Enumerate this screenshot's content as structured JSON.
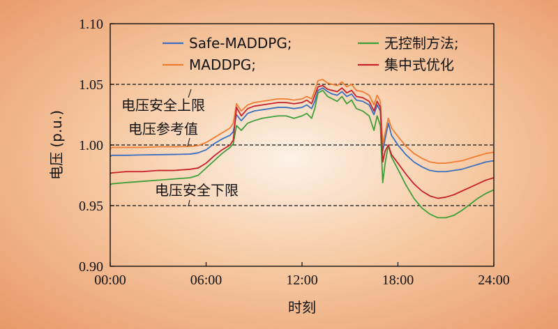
{
  "chart_data": {
    "type": "line",
    "title": "",
    "xlabel": "时刻",
    "ylabel": "电压 (p.u.)",
    "xlim": [
      0,
      24
    ],
    "ylim": [
      0.9,
      1.1
    ],
    "x_ticks": [
      "00:00",
      "06:00",
      "12:00",
      "18:00",
      "24:00"
    ],
    "y_ticks": [
      "0.90",
      "0.95",
      "1.00",
      "1.05",
      "1.10"
    ],
    "grid": false,
    "legend_position": "top",
    "reference_lines": [
      {
        "label": "电压安全上限",
        "y": 1.05
      },
      {
        "label": "电压参考值",
        "y": 1.0
      },
      {
        "label": "电压安全下限",
        "y": 0.95
      }
    ],
    "series": [
      {
        "name": "Safe-MADDPG;",
        "color": "#3a6fc0",
        "points": [
          [
            0,
            0.9905
          ],
          [
            0.1,
            0.9915
          ],
          [
            1,
            0.9915
          ],
          [
            2,
            0.9918
          ],
          [
            3,
            0.992
          ],
          [
            4,
            0.9922
          ],
          [
            5,
            0.9925
          ],
          [
            5.5,
            0.9935
          ],
          [
            6,
            0.996
          ],
          [
            6.5,
            1.001
          ],
          [
            7,
            1.005
          ],
          [
            7.5,
            1.008
          ],
          [
            7.7,
            1.011
          ],
          [
            7.9,
            1.025
          ],
          [
            8.2,
            1.02
          ],
          [
            8.6,
            1.026
          ],
          [
            9,
            1.028
          ],
          [
            9.5,
            1.029
          ],
          [
            10,
            1.03
          ],
          [
            10.5,
            1.031
          ],
          [
            11,
            1.031
          ],
          [
            11.5,
            1.03
          ],
          [
            12,
            1.031
          ],
          [
            12.3,
            1.033
          ],
          [
            12.6,
            1.03
          ],
          [
            12.8,
            1.036
          ],
          [
            13,
            1.045
          ],
          [
            13.3,
            1.047
          ],
          [
            13.6,
            1.044
          ],
          [
            13.9,
            1.042
          ],
          [
            14.2,
            1.041
          ],
          [
            14.5,
            1.044
          ],
          [
            14.8,
            1.04
          ],
          [
            15.1,
            1.042
          ],
          [
            15.4,
            1.037
          ],
          [
            15.8,
            1.036
          ],
          [
            16.2,
            1.033
          ],
          [
            16.5,
            1.025
          ],
          [
            16.7,
            1.033
          ],
          [
            16.9,
            1.028
          ],
          [
            17.05,
            0.995
          ],
          [
            17.2,
            1.005
          ],
          [
            17.4,
            1.018
          ],
          [
            17.6,
            1.008
          ],
          [
            18,
            1.0
          ],
          [
            18.5,
            0.992
          ],
          [
            19,
            0.986
          ],
          [
            19.5,
            0.982
          ],
          [
            20,
            0.979
          ],
          [
            20.5,
            0.978
          ],
          [
            21,
            0.978
          ],
          [
            21.5,
            0.979
          ],
          [
            22,
            0.98
          ],
          [
            22.5,
            0.982
          ],
          [
            23,
            0.984
          ],
          [
            23.5,
            0.986
          ],
          [
            24,
            0.987
          ]
        ]
      },
      {
        "name": "MADDPG;",
        "color": "#f07c32",
        "points": [
          [
            0,
            0.9965
          ],
          [
            0.1,
            0.998
          ],
          [
            1,
            0.998
          ],
          [
            2,
            0.998
          ],
          [
            3,
            0.9985
          ],
          [
            4,
            0.9985
          ],
          [
            5,
            0.9988
          ],
          [
            5.5,
            0.9995
          ],
          [
            6,
            1.002
          ],
          [
            6.5,
            1.006
          ],
          [
            7,
            1.01
          ],
          [
            7.5,
            1.014
          ],
          [
            7.7,
            1.018
          ],
          [
            7.9,
            1.034
          ],
          [
            8.2,
            1.028
          ],
          [
            8.6,
            1.033
          ],
          [
            9,
            1.035
          ],
          [
            9.5,
            1.036
          ],
          [
            10,
            1.037
          ],
          [
            10.5,
            1.038
          ],
          [
            11,
            1.038
          ],
          [
            11.5,
            1.037
          ],
          [
            12,
            1.038
          ],
          [
            12.3,
            1.04
          ],
          [
            12.6,
            1.038
          ],
          [
            12.8,
            1.045
          ],
          [
            13,
            1.053
          ],
          [
            13.3,
            1.054
          ],
          [
            13.6,
            1.051
          ],
          [
            13.9,
            1.05
          ],
          [
            14.2,
            1.049
          ],
          [
            14.5,
            1.052
          ],
          [
            14.8,
            1.048
          ],
          [
            15.1,
            1.05
          ],
          [
            15.4,
            1.045
          ],
          [
            15.8,
            1.044
          ],
          [
            16.2,
            1.041
          ],
          [
            16.5,
            1.033
          ],
          [
            16.7,
            1.041
          ],
          [
            16.9,
            1.036
          ],
          [
            17.05,
            1.0
          ],
          [
            17.2,
            1.01
          ],
          [
            17.4,
            1.022
          ],
          [
            17.6,
            1.014
          ],
          [
            18,
            1.007
          ],
          [
            18.5,
            0.999
          ],
          [
            19,
            0.993
          ],
          [
            19.5,
            0.989
          ],
          [
            20,
            0.986
          ],
          [
            20.5,
            0.985
          ],
          [
            21,
            0.985
          ],
          [
            21.5,
            0.986
          ],
          [
            22,
            0.987
          ],
          [
            22.5,
            0.989
          ],
          [
            23,
            0.991
          ],
          [
            23.5,
            0.993
          ],
          [
            24,
            0.994
          ]
        ]
      },
      {
        "name": "无控制方法;",
        "color": "#3e9e3a",
        "points": [
          [
            0,
            0.967
          ],
          [
            0.1,
            0.968
          ],
          [
            1,
            0.969
          ],
          [
            2,
            0.97
          ],
          [
            3,
            0.971
          ],
          [
            4,
            0.972
          ],
          [
            5,
            0.973
          ],
          [
            5.5,
            0.975
          ],
          [
            6,
            0.981
          ],
          [
            6.5,
            0.987
          ],
          [
            7,
            0.993
          ],
          [
            7.5,
            0.998
          ],
          [
            7.7,
            1.001
          ],
          [
            7.9,
            1.016
          ],
          [
            8.2,
            1.012
          ],
          [
            8.6,
            1.018
          ],
          [
            9,
            1.02
          ],
          [
            9.5,
            1.022
          ],
          [
            10,
            1.023
          ],
          [
            10.5,
            1.024
          ],
          [
            11,
            1.024
          ],
          [
            11.5,
            1.022
          ],
          [
            12,
            1.024
          ],
          [
            12.3,
            1.026
          ],
          [
            12.6,
            1.022
          ],
          [
            12.8,
            1.03
          ],
          [
            13,
            1.043
          ],
          [
            13.3,
            1.045
          ],
          [
            13.6,
            1.04
          ],
          [
            13.9,
            1.038
          ],
          [
            14.2,
            1.036
          ],
          [
            14.5,
            1.04
          ],
          [
            14.8,
            1.034
          ],
          [
            15.1,
            1.037
          ],
          [
            15.4,
            1.03
          ],
          [
            15.8,
            1.028
          ],
          [
            16.2,
            1.024
          ],
          [
            16.5,
            1.012
          ],
          [
            16.7,
            1.024
          ],
          [
            16.9,
            1.016
          ],
          [
            17.05,
            0.969
          ],
          [
            17.2,
            0.985
          ],
          [
            17.4,
            1.0
          ],
          [
            17.6,
            0.99
          ],
          [
            18,
            0.98
          ],
          [
            18.5,
            0.967
          ],
          [
            19,
            0.956
          ],
          [
            19.5,
            0.948
          ],
          [
            20,
            0.943
          ],
          [
            20.5,
            0.94
          ],
          [
            21,
            0.94
          ],
          [
            21.5,
            0.942
          ],
          [
            22,
            0.946
          ],
          [
            22.5,
            0.951
          ],
          [
            23,
            0.956
          ],
          [
            23.5,
            0.96
          ],
          [
            24,
            0.963
          ]
        ]
      },
      {
        "name": "集中式优化",
        "color": "#c8202a",
        "points": [
          [
            0,
            0.9765
          ],
          [
            0.1,
            0.977
          ],
          [
            1,
            0.978
          ],
          [
            2,
            0.978
          ],
          [
            3,
            0.979
          ],
          [
            4,
            0.979
          ],
          [
            5,
            0.98
          ],
          [
            5.5,
            0.981
          ],
          [
            6,
            0.985
          ],
          [
            6.5,
            0.991
          ],
          [
            7,
            0.996
          ],
          [
            7.5,
            1.0
          ],
          [
            7.7,
            1.004
          ],
          [
            7.9,
            1.031
          ],
          [
            8.2,
            1.024
          ],
          [
            8.6,
            1.03
          ],
          [
            9,
            1.032
          ],
          [
            9.5,
            1.033
          ],
          [
            10,
            1.034
          ],
          [
            10.5,
            1.035
          ],
          [
            11,
            1.035
          ],
          [
            11.5,
            1.034
          ],
          [
            12,
            1.035
          ],
          [
            12.3,
            1.037
          ],
          [
            12.6,
            1.034
          ],
          [
            12.8,
            1.041
          ],
          [
            13,
            1.048
          ],
          [
            13.3,
            1.049
          ],
          [
            13.6,
            1.046
          ],
          [
            13.9,
            1.045
          ],
          [
            14.2,
            1.044
          ],
          [
            14.5,
            1.047
          ],
          [
            14.8,
            1.043
          ],
          [
            15.1,
            1.045
          ],
          [
            15.4,
            1.04
          ],
          [
            15.8,
            1.039
          ],
          [
            16.2,
            1.036
          ],
          [
            16.5,
            1.028
          ],
          [
            16.7,
            1.036
          ],
          [
            16.9,
            1.031
          ],
          [
            17.05,
            0.986
          ],
          [
            17.2,
            0.995
          ],
          [
            17.4,
            1.0
          ],
          [
            17.6,
            0.992
          ],
          [
            18,
            0.985
          ],
          [
            18.5,
            0.976
          ],
          [
            19,
            0.968
          ],
          [
            19.5,
            0.962
          ],
          [
            20,
            0.958
          ],
          [
            20.5,
            0.956
          ],
          [
            21,
            0.957
          ],
          [
            21.5,
            0.959
          ],
          [
            22,
            0.962
          ],
          [
            22.5,
            0.965
          ],
          [
            23,
            0.968
          ],
          [
            23.5,
            0.971
          ],
          [
            24,
            0.973
          ]
        ]
      }
    ]
  }
}
